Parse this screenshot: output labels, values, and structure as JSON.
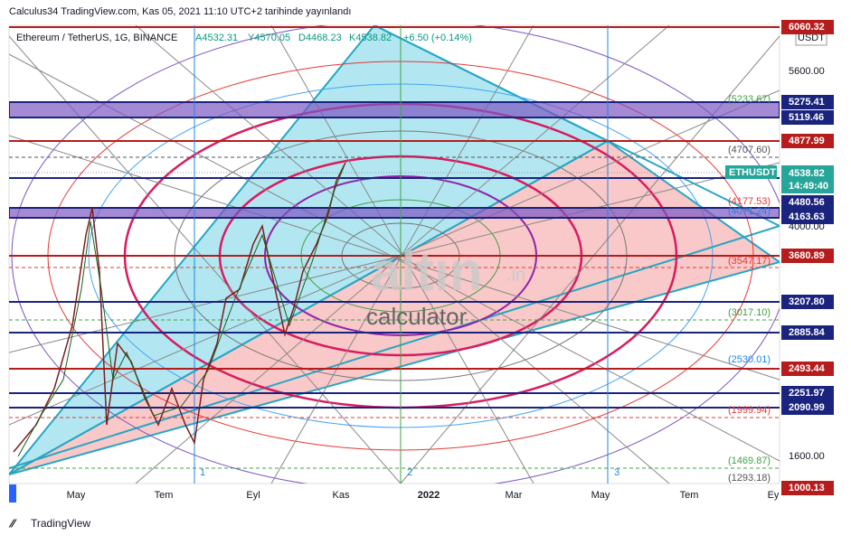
{
  "header": {
    "title": "Calculus34 TradingView.com, Kas 05, 2021 11:10 UTC+2 tarihinde yayınlandı"
  },
  "legend": {
    "symbol": "Ethereum / TetherUS, 1G, BINANCE",
    "open": "A4532.31",
    "high": "Y4570.05",
    "low": "D4468.23",
    "close": "K4538.82",
    "change": "+6.50 (+0.14%)"
  },
  "currency": "USDT",
  "price_axis": {
    "plain": [
      "5600.00",
      "4000.00",
      "1600.00"
    ],
    "navy": [
      "5275.41",
      "5119.46",
      "4480.56",
      "4163.63",
      "3207.80",
      "2885.84",
      "2251.97",
      "2090.99"
    ],
    "red": [
      "6060.32",
      "4877.99",
      "3680.89",
      "2493.44",
      "1000.13"
    ],
    "last": {
      "symbol": "ETHUSDT",
      "price": "4538.82",
      "countdown": "14:49:40"
    }
  },
  "fib_labels": [
    "(5233.67)",
    "(4707.60)",
    "(4177.53)",
    "(4071.24)",
    "(3547.17)",
    "(3017.10)",
    "(2530.01)",
    "(1999.94)",
    "(1469.87)",
    "(1293.18)"
  ],
  "time_axis": [
    "May",
    "Tem",
    "Eyl",
    "Kas",
    "2022",
    "Mar",
    "May",
    "Tem",
    "Ey"
  ],
  "markers": [
    "1",
    "2",
    "3"
  ],
  "watermark": {
    "brand": "altın",
    "tld": ".in",
    "sub": "calculator"
  },
  "footer": {
    "brand": "TradingView"
  }
}
